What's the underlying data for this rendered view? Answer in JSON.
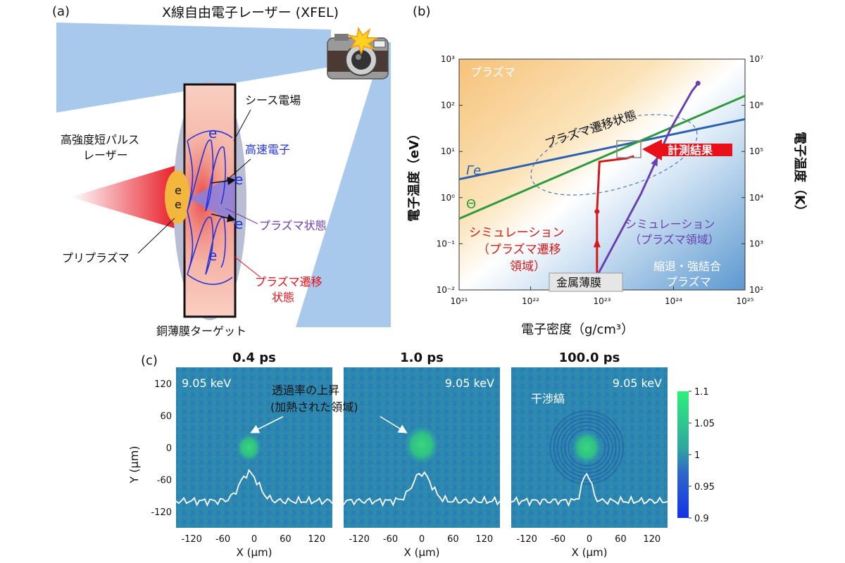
{
  "panel_a": {
    "label": "(a)",
    "title": "X線自由電子レーザー (XFEL)",
    "sheath_label": "シース電場",
    "laser_label_1": "高強度短パルス",
    "laser_label_2": "レーザー",
    "fast_electron_label": "高速電子",
    "plasma_state_label": "プラズマ状態",
    "preplasma_label": "プリプラズマ",
    "transition_label_1": "プラズマ遷移",
    "transition_label_2": "状態",
    "target_label": "銅薄膜ターゲット",
    "electron_symbol": "e",
    "camera_icon": "camera-flash-icon",
    "colors": {
      "xfel_beam": "#a9c9ec",
      "laser": "#e8202a",
      "target": "#f6b9a8",
      "sheath": "#b9bed4",
      "electron": "#2233cc"
    }
  },
  "panel_b": {
    "label": "(b)",
    "region_plasma": "プラズマ",
    "region_transition": "プラズマ遷移状態",
    "region_degenerate_1": "縮退・強結合",
    "region_degenerate_2": "プラズマ",
    "measurement_label": "計測結果",
    "sim_red_1": "シミュレーション",
    "sim_red_2": "（プラズマ遷移",
    "sim_red_3": "領域）",
    "sim_purple_1": "シミュレーション",
    "sim_purple_2": "（プラズマ領域）",
    "metal_film_label": "金属薄膜",
    "gamma_label": "Γe",
    "theta_label": "Θ",
    "colors": {
      "sim_red": "#d21a1a",
      "sim_purple": "#6a3fb0",
      "gamma_line": "#2a62b0",
      "theta_line": "#2e9a3e",
      "measure_arrow": "#e8101a"
    }
  },
  "panel_c": {
    "label": "(c)",
    "panels": [
      {
        "title": "0.4 ps",
        "energy": "9.05 keV"
      },
      {
        "title": "1.0 ps",
        "energy": "9.05 keV"
      },
      {
        "title": "100.0 ps",
        "energy": "9.05 keV"
      }
    ],
    "annotation_1": "透過率の上昇",
    "annotation_2": "(加熱された領域)",
    "fringe_label": "干渉縞",
    "colorbar_ticks": [
      "1.1",
      "1.05",
      "1",
      "0.95",
      "0.9"
    ]
  },
  "chart_data": [
    {
      "type": "line",
      "xlabel": "電子密度（g/cm³）",
      "ylabel": "電子温度（eV）",
      "y2label": "電子温度（K）",
      "x_scale": "log",
      "y_scale": "log",
      "xlim": [
        1e+21,
        1e+25
      ],
      "ylim": [
        0.01,
        1000
      ],
      "y2lim": [
        100,
        10000000
      ],
      "x_tick_labels": [
        "10²¹",
        "10²²",
        "10²³",
        "10²⁴",
        "10²⁵"
      ],
      "y_tick_labels": [
        "10⁻²",
        "10⁻¹",
        "10⁰",
        "10¹",
        "10²",
        "10³"
      ],
      "y2_tick_labels": [
        "10²",
        "10³",
        "10⁴",
        "10⁵",
        "10⁶",
        "10⁷"
      ],
      "series": [
        {
          "name": "Γe",
          "x": [
            1e+21,
            1e+25
          ],
          "y": [
            2.5,
            50
          ]
        },
        {
          "name": "Θ",
          "x": [
            1e+21,
            1e+25
          ],
          "y": [
            0.35,
            160
          ]
        },
        {
          "name": "シミュレーション（プラズマ遷移領域）",
          "x": [
            8.5e+22,
            8.5e+22,
            9.2e+22,
            1.5e+23,
            2.2e+23,
            2.8e+23
          ],
          "y": [
            0.02,
            0.5,
            6,
            6.6,
            7.1,
            7.9
          ]
        },
        {
          "name": "シミュレーション（プラズマ領域）",
          "x": [
            8.5e+22,
            3.5e+23,
            9e+23,
            1.8e+24,
            2.2e+24
          ],
          "y": [
            0.02,
            1.2,
            30,
            200,
            300
          ]
        }
      ]
    },
    {
      "type": "heatmap",
      "xlabel": "X (μm)",
      "ylabel": "Y (μm)",
      "xlim": [
        -150,
        150
      ],
      "ylim": [
        -150,
        150
      ],
      "x_ticks": [
        -120,
        -60,
        0,
        60,
        120
      ],
      "y_ticks": [
        120,
        60,
        0,
        -60,
        -120
      ],
      "colorbar_range": [
        0.9,
        1.1
      ],
      "panels": [
        "0.4 ps",
        "1.0 ps",
        "100.0 ps"
      ]
    }
  ]
}
